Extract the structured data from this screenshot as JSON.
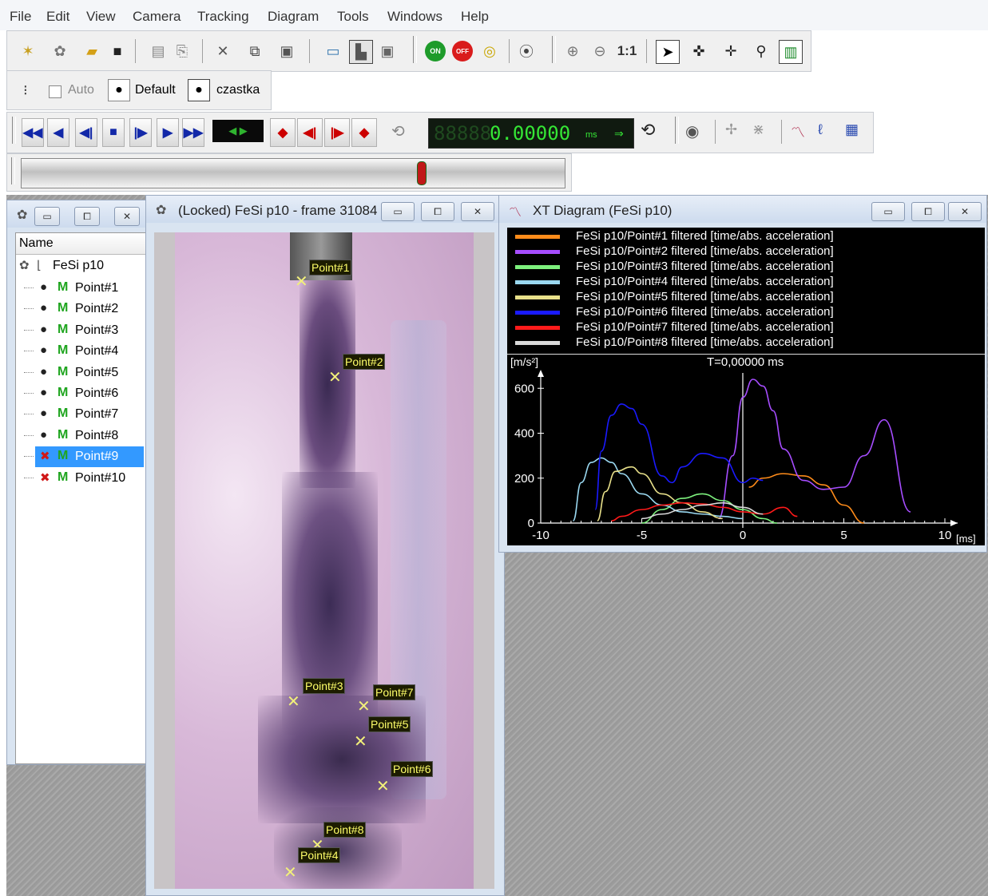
{
  "menu": [
    "File",
    "Edit",
    "View",
    "Camera",
    "Tracking",
    "Diagram",
    "Tools",
    "Windows",
    "Help"
  ],
  "toolbar1": {
    "icons": [
      "new-project-icon",
      "new-camera-icon",
      "open-folder-icon",
      "save-icon",
      "copy-doc-icon",
      "paste-doc-icon",
      "delete-icon",
      "copy-icon",
      "paste-icon",
      "window-layout-1-icon",
      "window-layout-2-icon",
      "window-layout-3-icon",
      "tracking-on-icon",
      "tracking-off-icon",
      "auto-detect-icon",
      "help-icon",
      "zoom-in-icon",
      "zoom-out-icon",
      "zoom-1to1-icon",
      "pointer-icon",
      "add-point-icon",
      "edit-point-icon",
      "magnifier-icon",
      "bar-chart-icon"
    ],
    "on_label": "ON",
    "off_label": "OFF",
    "zoom_label": "1:1"
  },
  "toolbar2": {
    "auto_label": "Auto",
    "default_label": "Default",
    "czastka_label": "czastka"
  },
  "toolbar3": {
    "time_digits": "0.00000",
    "time_ghost": "88888",
    "time_unit": "ms"
  },
  "tree_window": {
    "header": "Name",
    "root": "FeSi p10",
    "items": [
      {
        "label": "Point#1",
        "marker": "M",
        "disabled": false,
        "selected": false
      },
      {
        "label": "Point#2",
        "marker": "M",
        "disabled": false,
        "selected": false
      },
      {
        "label": "Point#3",
        "marker": "M",
        "disabled": false,
        "selected": false
      },
      {
        "label": "Point#4",
        "marker": "M",
        "disabled": false,
        "selected": false
      },
      {
        "label": "Point#5",
        "marker": "M",
        "disabled": false,
        "selected": false
      },
      {
        "label": "Point#6",
        "marker": "M",
        "disabled": false,
        "selected": false
      },
      {
        "label": "Point#7",
        "marker": "M",
        "disabled": false,
        "selected": false
      },
      {
        "label": "Point#8",
        "marker": "M",
        "disabled": false,
        "selected": false
      },
      {
        "label": "Point#9",
        "marker": "M",
        "disabled": true,
        "selected": true
      },
      {
        "label": "Point#10",
        "marker": "M",
        "disabled": true,
        "selected": false
      }
    ]
  },
  "video_window": {
    "title": "(Locked) FeSi p10 - frame 31084",
    "points": [
      "Point#1",
      "Point#2",
      "Point#3",
      "Point#7",
      "Point#5",
      "Point#6",
      "Point#8",
      "Point#4"
    ]
  },
  "diagram_window": {
    "title": "XT Diagram (FeSi p10)"
  },
  "chart_data": {
    "type": "line",
    "ylabel": "[m/s²]",
    "xlabel": "[ms]",
    "annotation": "T=0,00000 ms",
    "xlim": [
      -10,
      10
    ],
    "ylim": [
      0,
      700
    ],
    "x_ticks": [
      -10,
      -5,
      0,
      5,
      10
    ],
    "y_ticks": [
      0,
      200,
      400,
      600
    ],
    "series": [
      {
        "name": "FeSi p10/Point#1 filtered [time/abs. acceleration]",
        "color": "#ff8c1a",
        "x": [
          0.3,
          1,
          2,
          3,
          4,
          5,
          6
        ],
        "y": [
          160,
          200,
          220,
          210,
          170,
          80,
          0
        ]
      },
      {
        "name": "FeSi p10/Point#2 filtered [time/abs. acceleration]",
        "color": "#a64dff",
        "x": [
          -1.2,
          -0.5,
          0,
          0.5,
          1,
          1.5,
          2,
          3,
          4,
          5,
          6,
          7,
          8.3
        ],
        "y": [
          20,
          300,
          560,
          640,
          610,
          500,
          330,
          190,
          150,
          160,
          300,
          460,
          50
        ]
      },
      {
        "name": "FeSi p10/Point#3 filtered [time/abs. acceleration]",
        "color": "#7df07d",
        "x": [
          -5,
          -4,
          -3,
          -2,
          -1,
          0,
          1,
          1.7
        ],
        "y": [
          0,
          60,
          110,
          130,
          100,
          60,
          20,
          0
        ]
      },
      {
        "name": "FeSi p10/Point#4 filtered [time/abs. acceleration]",
        "color": "#9ad8f0",
        "x": [
          -8.4,
          -8,
          -7.5,
          -7,
          -6.5,
          -6,
          -5,
          -4,
          -3,
          -2,
          -1,
          0
        ],
        "y": [
          10,
          180,
          270,
          290,
          270,
          220,
          130,
          80,
          50,
          40,
          30,
          20
        ]
      },
      {
        "name": "FeSi p10/Point#5 filtered [time/abs. acceleration]",
        "color": "#e8e08a",
        "x": [
          -7.2,
          -6.8,
          -6.3,
          -5.5,
          -5,
          -4,
          -3,
          -2,
          -1
        ],
        "y": [
          10,
          140,
          230,
          250,
          220,
          130,
          90,
          50,
          20
        ]
      },
      {
        "name": "FeSi p10/Point#6 filtered [time/abs. acceleration]",
        "color": "#1a1aff",
        "x": [
          -7.3,
          -7,
          -6.5,
          -6,
          -5.5,
          -5,
          -4,
          -3.5,
          -3,
          -2,
          -1,
          0,
          0.5,
          1
        ],
        "y": [
          60,
          320,
          480,
          530,
          510,
          440,
          210,
          180,
          250,
          310,
          290,
          180,
          200,
          190
        ]
      },
      {
        "name": "FeSi p10/Point#7 filtered [time/abs. acceleration]",
        "color": "#ff1a1a",
        "x": [
          -6.5,
          -6,
          -5,
          -4,
          -3,
          -2,
          -1,
          0,
          1,
          2,
          2.7
        ],
        "y": [
          10,
          30,
          60,
          80,
          90,
          85,
          70,
          50,
          40,
          70,
          30
        ]
      },
      {
        "name": "FeSi p10/Point#8 filtered [time/abs. acceleration]",
        "color": "#d9d9d9",
        "x": [
          -5,
          -4,
          -3,
          -2,
          -1,
          0,
          1
        ],
        "y": [
          20,
          40,
          60,
          80,
          90,
          70,
          40
        ]
      }
    ]
  }
}
